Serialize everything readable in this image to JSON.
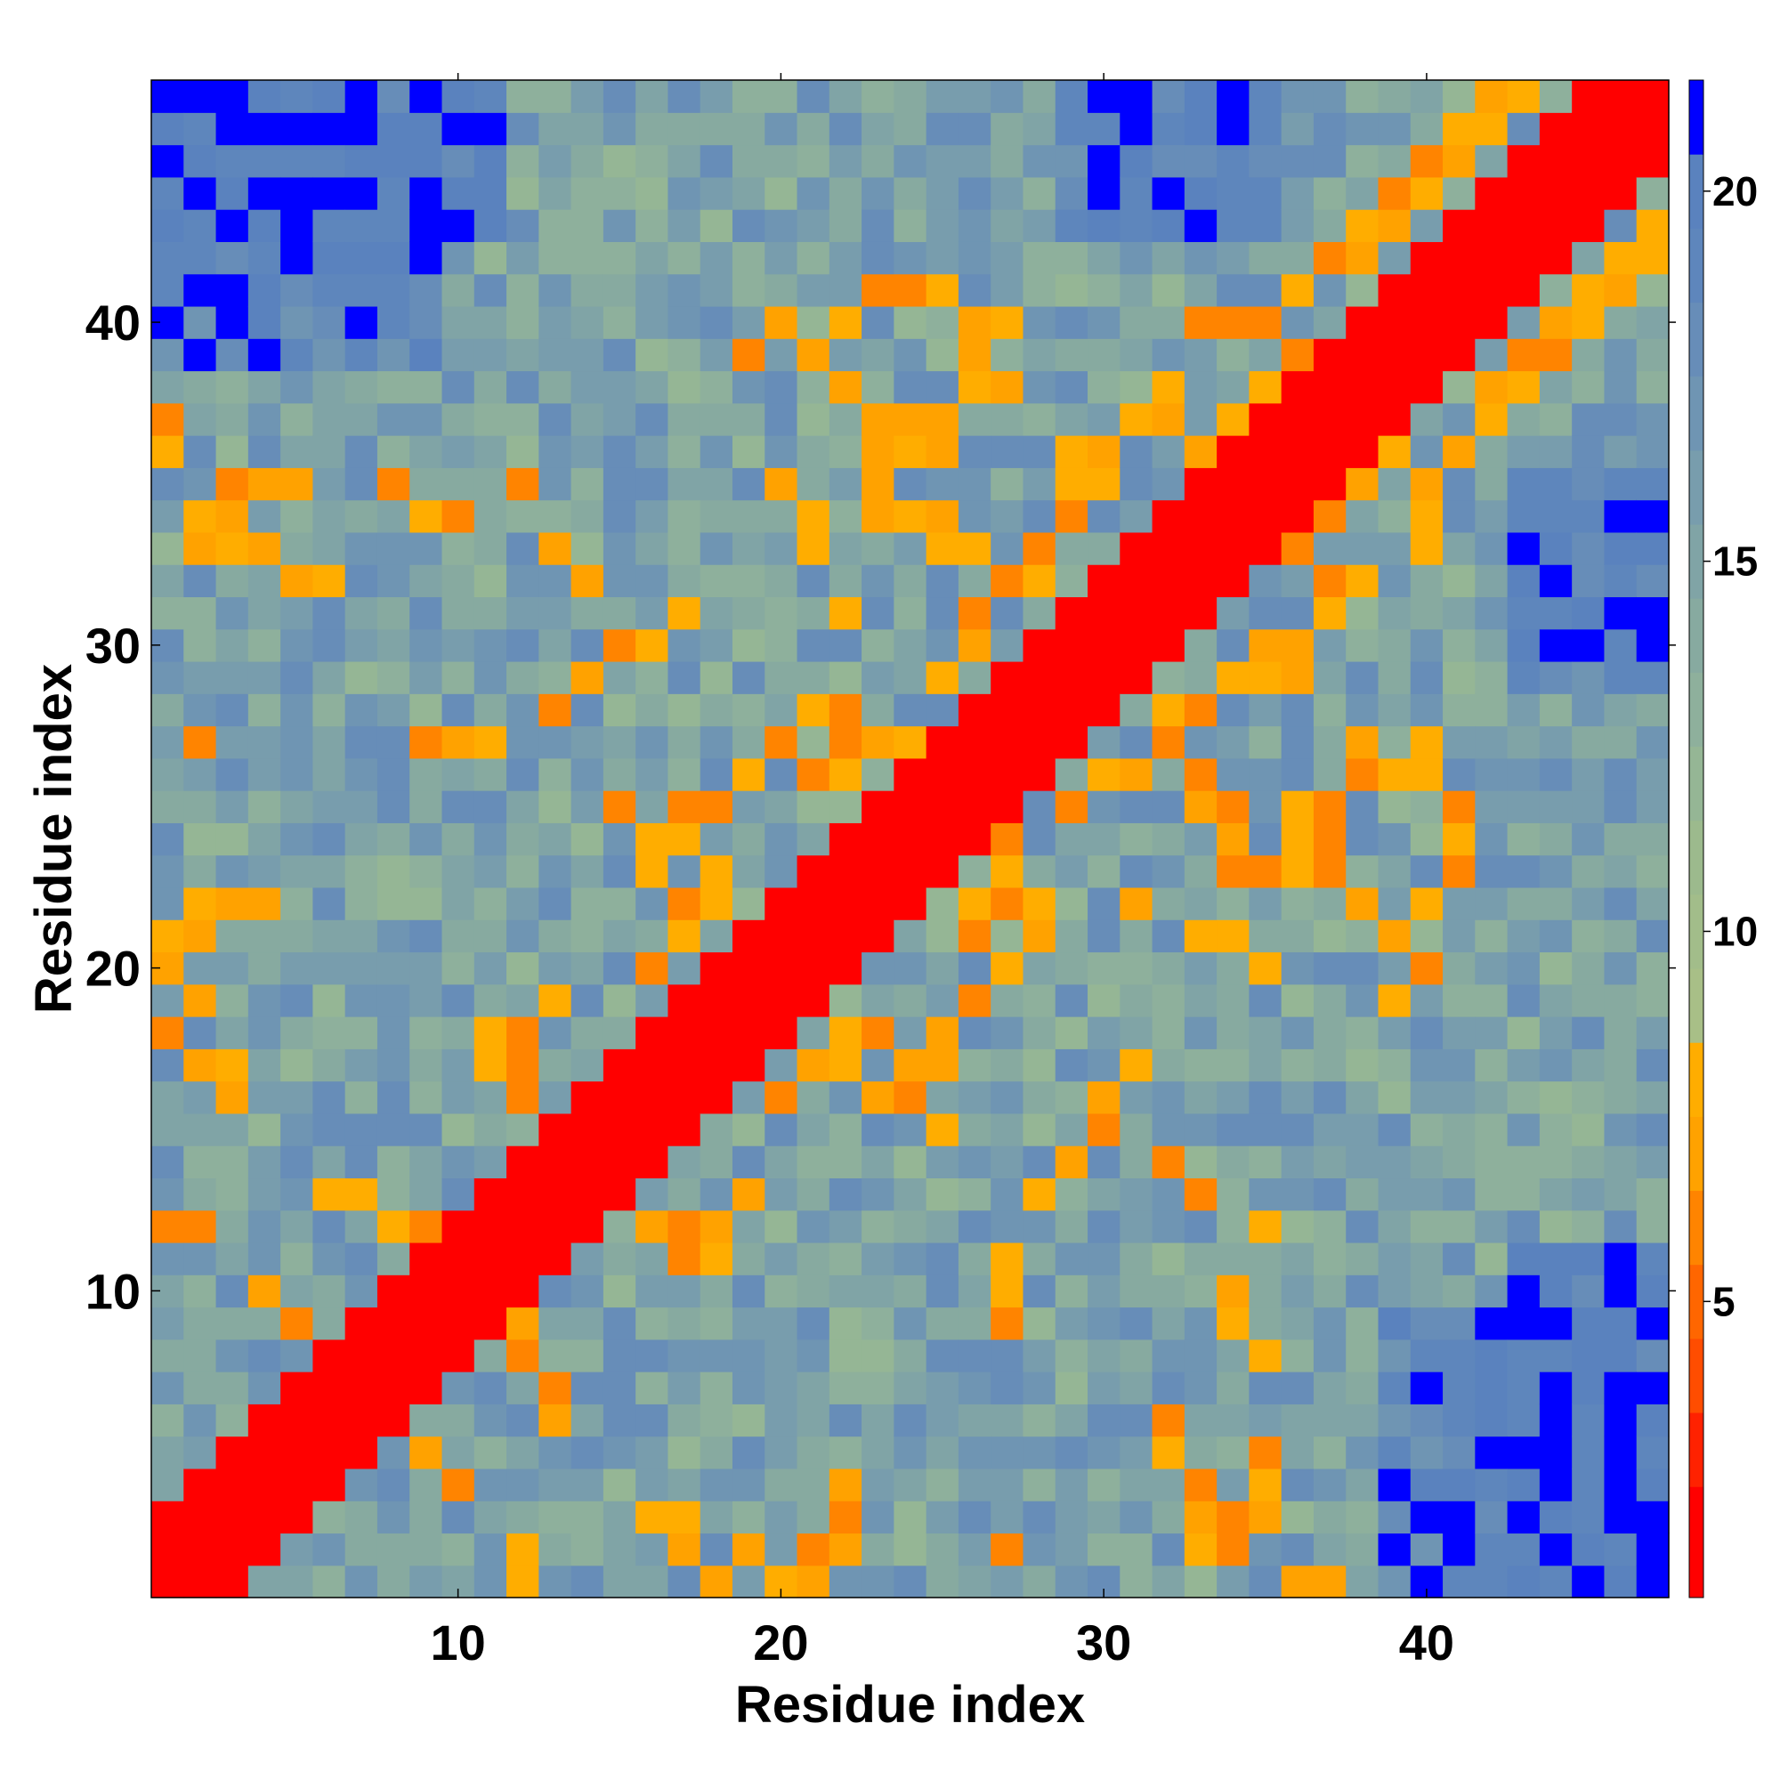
{
  "chart_data": {
    "type": "heatmap",
    "title": "",
    "xlabel": "Residue index",
    "ylabel": "Residue index",
    "n_residues": 47,
    "x_ticks": [
      10,
      20,
      30,
      40
    ],
    "y_ticks": [
      10,
      20,
      30,
      40
    ],
    "colorbar": {
      "range": [
        1,
        21.5
      ],
      "ticks": [
        5,
        10,
        15,
        20
      ],
      "colors": [
        {
          "max": 2.5,
          "color": "#ff0000"
        },
        {
          "max": 3.5,
          "color": "#ff2200"
        },
        {
          "max": 4.5,
          "color": "#ff4d00"
        },
        {
          "max": 5.5,
          "color": "#ff6600"
        },
        {
          "max": 6.5,
          "color": "#ff8400"
        },
        {
          "max": 7.5,
          "color": "#ffa200"
        },
        {
          "max": 8.5,
          "color": "#ffad00"
        },
        {
          "max": 9.5,
          "color": "#a8bf87"
        },
        {
          "max": 10.5,
          "color": "#a2bd8a"
        },
        {
          "max": 11.5,
          "color": "#9cba8d"
        },
        {
          "max": 12.5,
          "color": "#95b695"
        },
        {
          "max": 13.5,
          "color": "#8eb09c"
        },
        {
          "max": 14.5,
          "color": "#87aaa0"
        },
        {
          "max": 15.5,
          "color": "#80a4a6"
        },
        {
          "max": 16.5,
          "color": "#789dad"
        },
        {
          "max": 17.5,
          "color": "#6f95b3"
        },
        {
          "max": 18.5,
          "color": "#678db8"
        },
        {
          "max": 19.5,
          "color": "#5e86bc"
        },
        {
          "max": 20.5,
          "color": "#5a82be"
        },
        {
          "max": 99,
          "color": "#0000ff"
        }
      ]
    },
    "contact_pairs": [
      [
        2,
        21
      ],
      [
        1,
        21
      ],
      [
        3,
        17
      ],
      [
        6,
        13
      ],
      [
        7,
        13
      ],
      [
        8,
        12
      ],
      [
        9,
        12
      ],
      [
        9,
        11
      ],
      [
        9,
        10
      ],
      [
        8,
        10
      ],
      [
        7,
        9
      ],
      [
        11,
        17
      ],
      [
        12,
        17
      ],
      [
        12,
        16
      ],
      [
        13,
        15
      ],
      [
        14,
        16
      ],
      [
        11,
        18
      ],
      [
        12,
        18
      ],
      [
        13,
        19
      ],
      [
        16,
        20
      ],
      [
        17,
        21
      ],
      [
        17,
        22
      ],
      [
        18,
        22
      ],
      [
        18,
        23
      ],
      [
        16,
        23
      ],
      [
        16,
        24
      ],
      [
        17,
        24
      ],
      [
        15,
        25
      ],
      [
        18,
        25
      ],
      [
        17,
        25
      ],
      [
        19,
        26
      ],
      [
        20,
        27
      ],
      [
        21,
        26
      ],
      [
        22,
        26
      ],
      [
        23,
        27
      ],
      [
        24,
        27
      ],
      [
        21,
        28
      ],
      [
        22,
        28
      ],
      [
        22,
        27
      ],
      [
        25,
        29
      ],
      [
        26,
        30
      ],
      [
        26,
        31
      ],
      [
        27,
        32
      ],
      [
        28,
        32
      ],
      [
        25,
        33
      ],
      [
        26,
        33
      ],
      [
        23,
        34
      ],
      [
        24,
        34
      ],
      [
        25,
        34
      ],
      [
        28,
        33
      ],
      [
        29,
        34
      ],
      [
        29,
        35
      ],
      [
        30,
        35
      ],
      [
        30,
        36
      ],
      [
        31,
        37
      ],
      [
        32,
        37
      ],
      [
        32,
        38
      ],
      [
        29,
        36
      ],
      [
        23,
        37
      ],
      [
        22,
        38
      ],
      [
        21,
        39
      ],
      [
        19,
        39
      ],
      [
        20,
        40
      ],
      [
        22,
        40
      ],
      [
        23,
        41
      ],
      [
        24,
        41
      ],
      [
        25,
        41
      ],
      [
        33,
        40
      ],
      [
        34,
        40
      ],
      [
        35,
        40
      ],
      [
        36,
        41
      ],
      [
        37,
        42
      ],
      [
        38,
        42
      ],
      [
        38,
        43
      ],
      [
        39,
        43
      ],
      [
        40,
        44
      ],
      [
        39,
        44
      ],
      [
        40,
        45
      ],
      [
        41,
        45
      ],
      [
        41,
        46
      ],
      [
        42,
        46
      ],
      [
        43,
        47
      ],
      [
        42,
        47
      ],
      [
        44,
        46
      ],
      [
        35,
        37
      ],
      [
        34,
        37
      ],
      [
        33,
        36
      ],
      [
        34,
        36
      ],
      [
        35,
        38
      ],
      [
        36,
        38
      ],
      [
        37,
        39
      ],
      [
        38,
        40
      ],
      [
        36,
        39
      ],
      [
        3,
        34
      ],
      [
        2,
        34
      ],
      [
        4,
        33
      ],
      [
        4,
        35
      ],
      [
        5,
        35
      ],
      [
        3,
        35
      ],
      [
        1,
        36
      ],
      [
        1,
        37
      ],
      [
        2,
        33
      ],
      [
        3,
        33
      ],
      [
        5,
        32
      ],
      [
        6,
        32
      ],
      [
        9,
        34
      ],
      [
        2,
        27
      ],
      [
        8,
        35
      ],
      [
        12,
        35
      ],
      [
        9,
        27
      ],
      [
        10,
        34
      ],
      [
        10,
        27
      ],
      [
        11,
        27
      ],
      [
        13,
        28
      ],
      [
        14,
        29
      ],
      [
        15,
        30
      ],
      [
        16,
        30
      ],
      [
        17,
        31
      ],
      [
        14,
        32
      ],
      [
        13,
        33
      ],
      [
        21,
        33
      ],
      [
        21,
        34
      ],
      [
        22,
        31
      ],
      [
        20,
        35
      ],
      [
        23,
        35
      ],
      [
        26,
        39
      ],
      [
        26,
        38
      ],
      [
        27,
        38
      ],
      [
        25,
        37
      ],
      [
        24,
        37
      ],
      [
        23,
        36
      ],
      [
        24,
        36
      ],
      [
        26,
        40
      ],
      [
        27,
        40
      ],
      [
        25,
        36
      ],
      [
        1,
        20
      ],
      [
        1,
        21
      ],
      [
        2,
        22
      ],
      [
        3,
        22
      ],
      [
        4,
        22
      ],
      [
        1,
        18
      ],
      [
        2,
        19
      ],
      [
        2,
        17
      ],
      [
        3,
        16
      ],
      [
        5,
        9
      ],
      [
        4,
        10
      ],
      [
        1,
        12
      ],
      [
        2,
        12
      ]
    ]
  }
}
